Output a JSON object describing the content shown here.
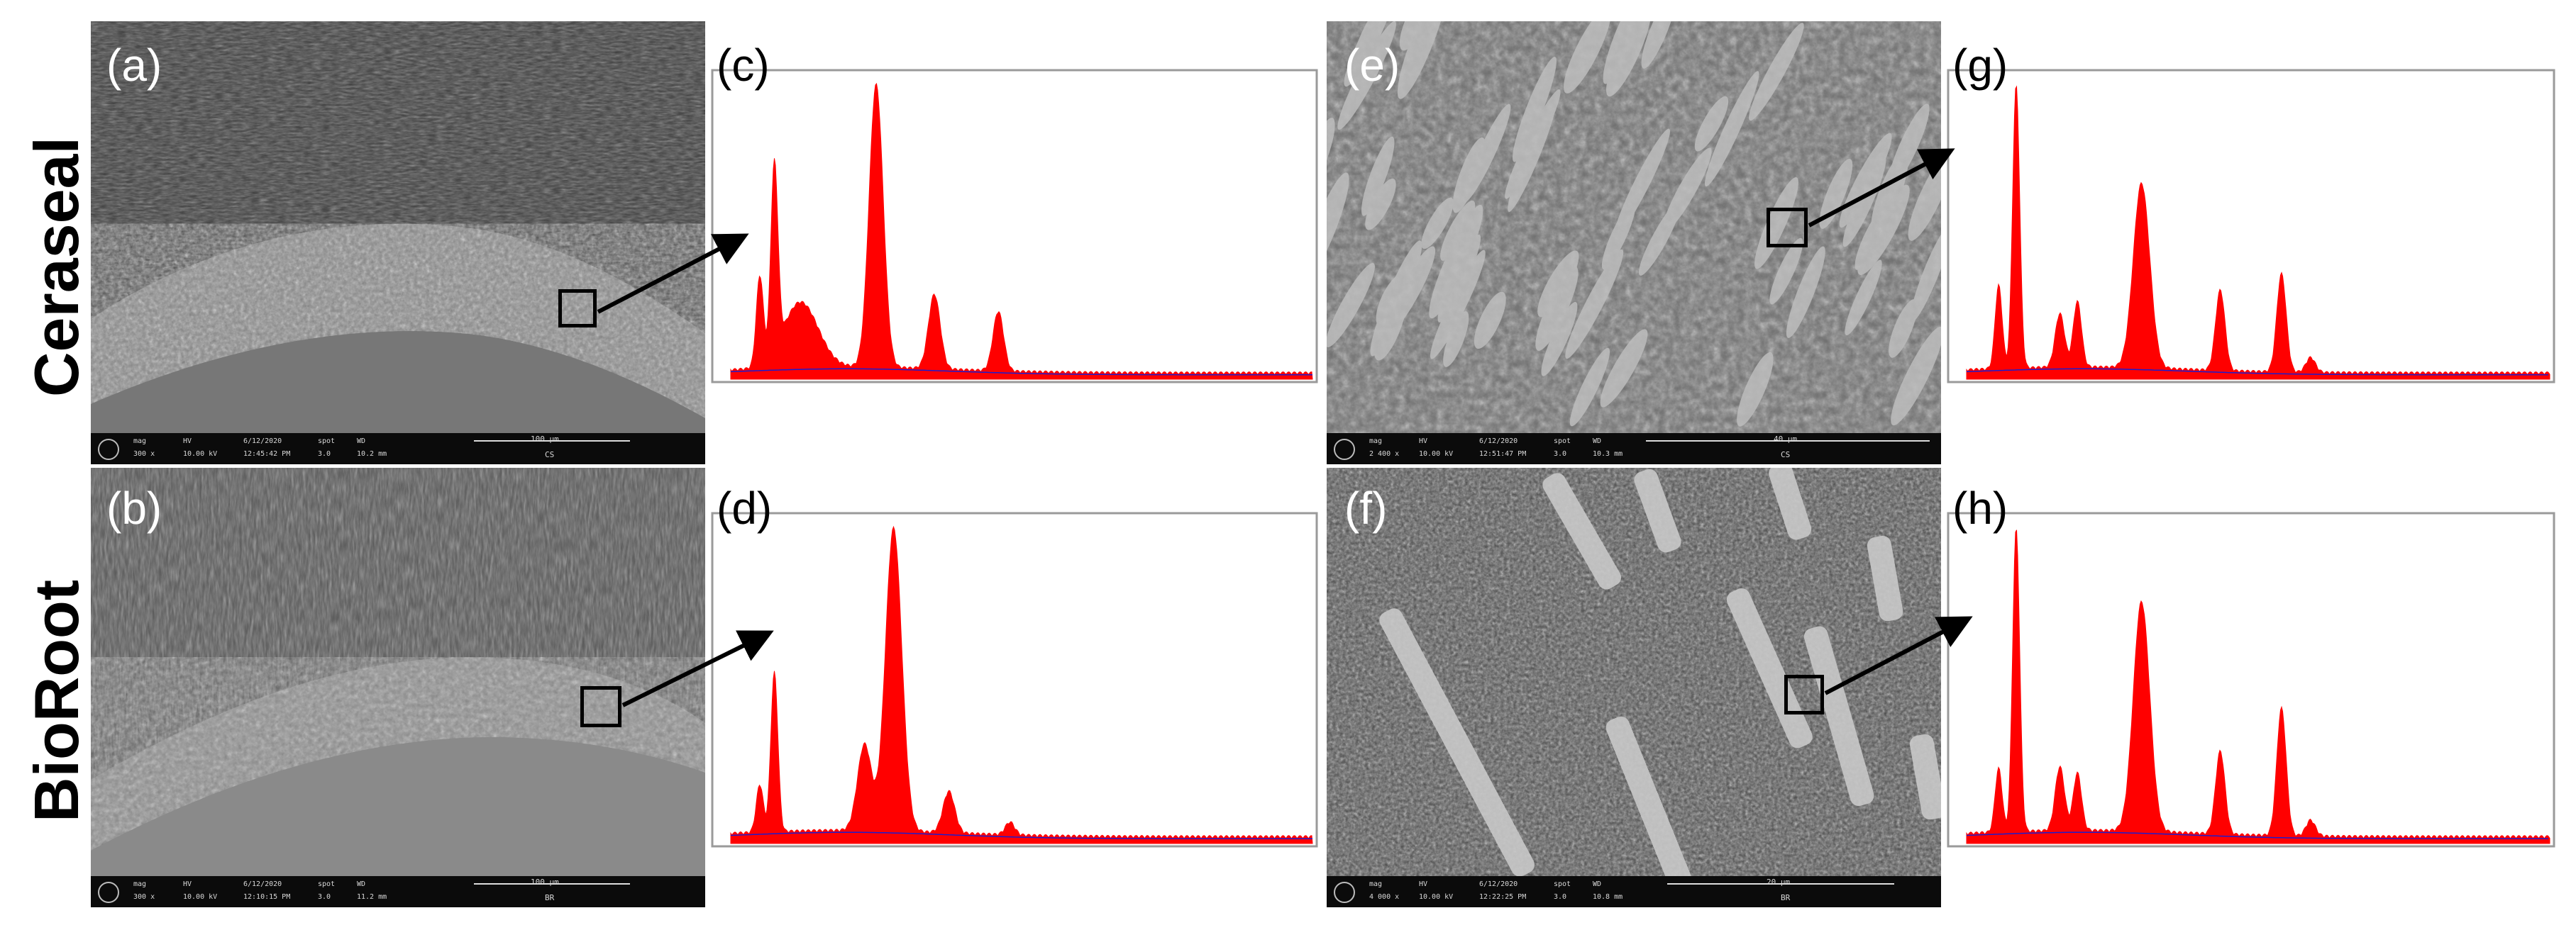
{
  "row_labels": [
    "Ceraseal",
    "BioRoot"
  ],
  "panel_letters": {
    "a": "(a)",
    "b": "(b)",
    "c": "(c)",
    "d": "(d)",
    "e": "(e)",
    "f": "(f)",
    "g": "(g)",
    "h": "(h)"
  },
  "sem_panels": {
    "a": {
      "mag": "300 x",
      "hv": "10.00 kV",
      "date": "6/12/2020",
      "time": "12:45:42 PM",
      "spot": "3.0",
      "wd": "10.2 mm",
      "scale": "100 µm",
      "sample": "CS"
    },
    "b": {
      "mag": "300 x",
      "hv": "10.00 kV",
      "date": "6/12/2020",
      "time": "12:10:15 PM",
      "spot": "3.0",
      "wd": "11.2 mm",
      "scale": "100 µm",
      "sample": "BR"
    },
    "e": {
      "mag": "2 400 x",
      "hv": "10.00 kV",
      "date": "6/12/2020",
      "time": "12:51:47 PM",
      "spot": "3.0",
      "wd": "10.3 mm",
      "scale": "40 µm",
      "sample": "CS"
    },
    "f": {
      "mag": "4 000 x",
      "hv": "10.00 kV",
      "date": "6/12/2020",
      "time": "12:22:25 PM",
      "spot": "3.0",
      "wd": "10.8 mm",
      "scale": "20 µm",
      "sample": "BR"
    }
  },
  "sem_header_labels": {
    "mag": "mag",
    "hv": "HV",
    "date": "",
    "spot": "spot",
    "wd": "WD"
  },
  "spectra_colors": {
    "fill": "#ff0000",
    "background_line": "#1b1bd0",
    "frame": "#9a9a9a"
  }
}
